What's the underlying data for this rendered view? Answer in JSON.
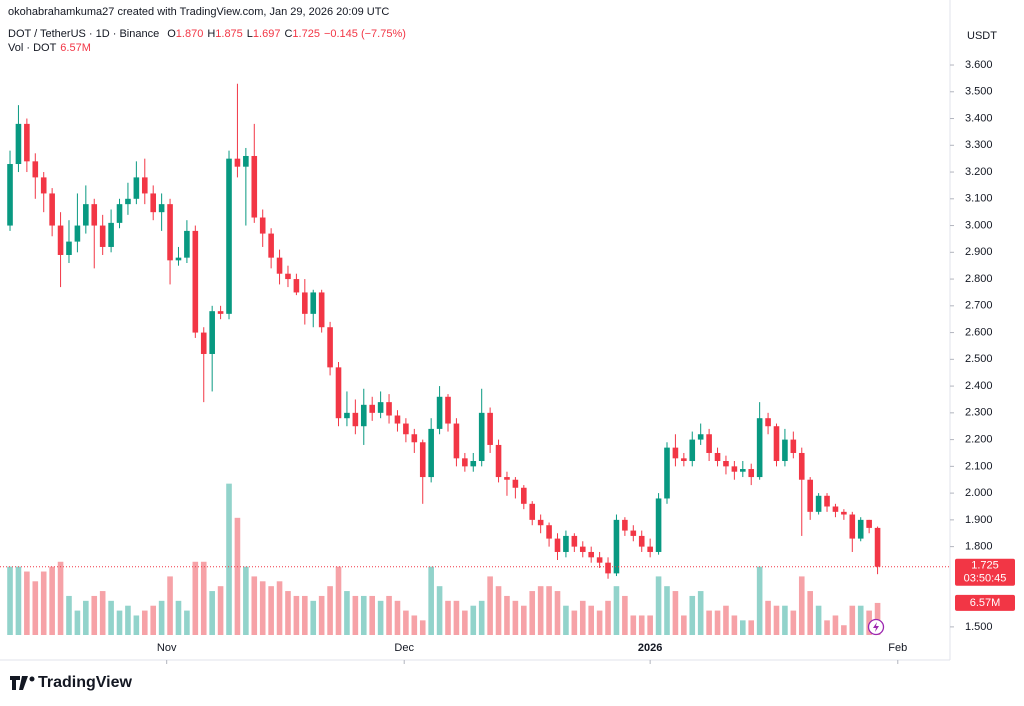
{
  "header": {
    "attribution": "okohabrahamkuma27 created with TradingView.com, Jan 29, 2026 20:09 UTC"
  },
  "footer": {
    "logo": "TradingView"
  },
  "chart_data": {
    "type": "candlestick",
    "symbol": "DOT / TetherUS · 1D · Binance",
    "ohlc_labels": [
      "O",
      "H",
      "L",
      "C"
    ],
    "last_labels": [
      "1.870",
      "1.875",
      "1.697",
      "1.725"
    ],
    "change": "−0.145 (−7.75%)",
    "volume_label": "Vol · DOT",
    "volume_value_label": "6.57M",
    "countdown": "03:50:45",
    "price_axis_label": "USDT",
    "up_color": "#089981",
    "down_color": "#f23645",
    "volume_up_color": "#92d3cb",
    "volume_down_color": "#f6a2a7",
    "open": [
      3.0,
      3.23,
      3.38,
      3.24,
      3.18,
      3.12,
      3.0,
      2.89,
      2.94,
      3.0,
      3.08,
      3.0,
      2.92,
      3.01,
      3.08,
      3.1,
      3.18,
      3.12,
      3.05,
      3.08,
      2.87,
      2.88,
      2.98,
      2.6,
      2.52,
      2.68,
      2.67,
      3.25,
      3.22,
      3.26,
      3.03,
      2.97,
      2.88,
      2.82,
      2.8,
      2.75,
      2.67,
      2.75,
      2.62,
      2.47,
      2.28,
      2.3,
      2.25,
      2.33,
      2.3,
      2.34,
      2.29,
      2.26,
      2.22,
      2.19,
      2.06,
      2.24,
      2.36,
      2.26,
      2.13,
      2.1,
      2.12,
      2.3,
      2.18,
      2.06,
      2.05,
      2.02,
      1.96,
      1.9,
      1.88,
      1.83,
      1.78,
      1.84,
      1.8,
      1.78,
      1.76,
      1.74,
      1.7,
      1.9,
      1.86,
      1.84,
      1.8,
      1.78,
      1.98,
      2.17,
      2.13,
      2.12,
      2.2,
      2.22,
      2.15,
      2.12,
      2.1,
      2.08,
      2.09,
      2.06,
      2.28,
      2.25,
      2.12,
      2.2,
      2.15,
      2.05,
      1.93,
      1.99,
      1.95,
      1.93,
      1.92,
      1.83,
      1.9,
      1.87
    ],
    "high": [
      3.28,
      3.45,
      3.4,
      3.27,
      3.2,
      3.14,
      3.05,
      3.02,
      3.12,
      3.15,
      3.1,
      3.04,
      3.06,
      3.1,
      3.16,
      3.24,
      3.25,
      3.15,
      3.12,
      3.1,
      2.92,
      3.02,
      3.0,
      2.62,
      2.7,
      2.7,
      3.28,
      3.53,
      3.29,
      3.38,
      3.06,
      2.99,
      2.91,
      2.85,
      2.82,
      2.8,
      2.76,
      2.76,
      2.64,
      2.49,
      2.38,
      2.35,
      2.39,
      2.36,
      2.38,
      2.37,
      2.31,
      2.28,
      2.24,
      2.2,
      2.28,
      2.4,
      2.37,
      2.28,
      2.15,
      2.15,
      2.39,
      2.32,
      2.2,
      2.08,
      2.06,
      2.03,
      1.97,
      1.92,
      1.89,
      1.85,
      1.86,
      1.85,
      1.82,
      1.8,
      1.78,
      1.76,
      1.92,
      1.91,
      1.88,
      1.86,
      1.83,
      2.0,
      2.19,
      2.22,
      2.15,
      2.23,
      2.26,
      2.24,
      2.17,
      2.14,
      2.12,
      2.12,
      2.11,
      2.34,
      2.3,
      2.26,
      2.24,
      2.23,
      2.17,
      2.06,
      2.0,
      2.0,
      1.96,
      1.94,
      1.93,
      1.91,
      1.9,
      1.875
    ],
    "low": [
      2.98,
      3.2,
      3.2,
      3.1,
      3.05,
      2.96,
      2.77,
      2.86,
      2.9,
      2.97,
      2.84,
      2.89,
      2.9,
      2.99,
      3.04,
      3.08,
      3.08,
      3.02,
      2.98,
      2.78,
      2.85,
      2.86,
      2.58,
      2.34,
      2.38,
      2.65,
      2.65,
      3.18,
      3.0,
      3.01,
      2.92,
      2.84,
      2.78,
      2.77,
      2.74,
      2.63,
      2.62,
      2.6,
      2.44,
      2.25,
      2.25,
      2.22,
      2.18,
      2.27,
      2.28,
      2.26,
      2.23,
      2.19,
      2.15,
      1.96,
      2.04,
      2.22,
      2.23,
      2.1,
      2.08,
      2.08,
      2.1,
      2.15,
      2.04,
      1.99,
      1.98,
      1.94,
      1.88,
      1.85,
      1.8,
      1.75,
      1.76,
      1.78,
      1.76,
      1.74,
      1.72,
      1.68,
      1.69,
      1.84,
      1.82,
      1.78,
      1.76,
      1.77,
      1.96,
      2.1,
      2.1,
      2.1,
      2.18,
      2.12,
      2.1,
      2.07,
      2.05,
      2.06,
      2.03,
      2.05,
      2.22,
      2.1,
      2.1,
      2.13,
      1.84,
      1.9,
      1.92,
      1.93,
      1.91,
      1.9,
      1.78,
      1.82,
      1.85,
      1.697
    ],
    "close": [
      3.23,
      3.38,
      3.24,
      3.18,
      3.12,
      3.0,
      2.89,
      2.94,
      3.0,
      3.08,
      3.0,
      2.92,
      3.01,
      3.08,
      3.1,
      3.18,
      3.12,
      3.05,
      3.08,
      2.87,
      2.88,
      2.98,
      2.6,
      2.52,
      2.68,
      2.67,
      3.25,
      3.22,
      3.26,
      3.03,
      2.97,
      2.88,
      2.82,
      2.8,
      2.75,
      2.67,
      2.75,
      2.62,
      2.47,
      2.28,
      2.3,
      2.25,
      2.33,
      2.3,
      2.34,
      2.29,
      2.26,
      2.22,
      2.19,
      2.06,
      2.24,
      2.36,
      2.26,
      2.13,
      2.1,
      2.12,
      2.3,
      2.18,
      2.06,
      2.05,
      2.02,
      1.96,
      1.9,
      1.88,
      1.83,
      1.78,
      1.84,
      1.8,
      1.78,
      1.76,
      1.74,
      1.7,
      1.9,
      1.86,
      1.84,
      1.8,
      1.78,
      1.98,
      2.17,
      2.13,
      2.12,
      2.2,
      2.22,
      2.15,
      2.12,
      2.1,
      2.08,
      2.09,
      2.06,
      2.28,
      2.25,
      2.12,
      2.2,
      2.15,
      2.05,
      1.93,
      1.99,
      1.95,
      1.93,
      1.92,
      1.83,
      1.9,
      1.87,
      1.725
    ],
    "volume": [
      14,
      14,
      13,
      11,
      13,
      14,
      15,
      8,
      5,
      7,
      8,
      9,
      7,
      5,
      6,
      4,
      5,
      6,
      7,
      12,
      7,
      5,
      15,
      15,
      9,
      10,
      31,
      24,
      14,
      12,
      11,
      10,
      11,
      9,
      8,
      8,
      7,
      8,
      10,
      14,
      9,
      8,
      8,
      8,
      7,
      8,
      7,
      5,
      4,
      3,
      14,
      10,
      7,
      7,
      5,
      6,
      7,
      12,
      10,
      8,
      7,
      6,
      9,
      10,
      10,
      9,
      6,
      5,
      7,
      6,
      5,
      7,
      10,
      8,
      4,
      4,
      4,
      12,
      10,
      9,
      4,
      8,
      9,
      5,
      5,
      6,
      4,
      3,
      3,
      14,
      7,
      6,
      6,
      5,
      12,
      9,
      6,
      3,
      4,
      2,
      6,
      6,
      5,
      6.57
    ],
    "volume_ylim": [
      0,
      34
    ],
    "xlim": [
      -1.19,
      111.6
    ],
    "xticks": [
      {
        "value": 18.6,
        "label": "Nov"
      },
      {
        "value": 46.8,
        "label": "Dec"
      },
      {
        "value": 76.0,
        "label": "2026"
      },
      {
        "value": 105.4,
        "label": "Feb"
      }
    ],
    "ylim": [
      1.451,
      3.843
    ],
    "yticks": [
      {
        "value": 1.5,
        "label": "1.500"
      },
      {
        "value": 1.8,
        "label": "1.800"
      },
      {
        "value": 1.9,
        "label": "1.900"
      },
      {
        "value": 2.0,
        "label": "2.000"
      },
      {
        "value": 2.1,
        "label": "2.100"
      },
      {
        "value": 2.2,
        "label": "2.200"
      },
      {
        "value": 2.3,
        "label": "2.300"
      },
      {
        "value": 2.4,
        "label": "2.400"
      },
      {
        "value": 2.5,
        "label": "2.500"
      },
      {
        "value": 2.6,
        "label": "2.600"
      },
      {
        "value": 2.7,
        "label": "2.700"
      },
      {
        "value": 2.8,
        "label": "2.800"
      },
      {
        "value": 2.9,
        "label": "2.900"
      },
      {
        "value": 3.0,
        "label": "3.000"
      },
      {
        "value": 3.1,
        "label": "3.100"
      },
      {
        "value": 3.2,
        "label": "3.200"
      },
      {
        "value": 3.3,
        "label": "3.300"
      },
      {
        "value": 3.4,
        "label": "3.400"
      },
      {
        "value": 3.5,
        "label": "3.500"
      },
      {
        "value": 3.6,
        "label": "3.600"
      }
    ]
  }
}
